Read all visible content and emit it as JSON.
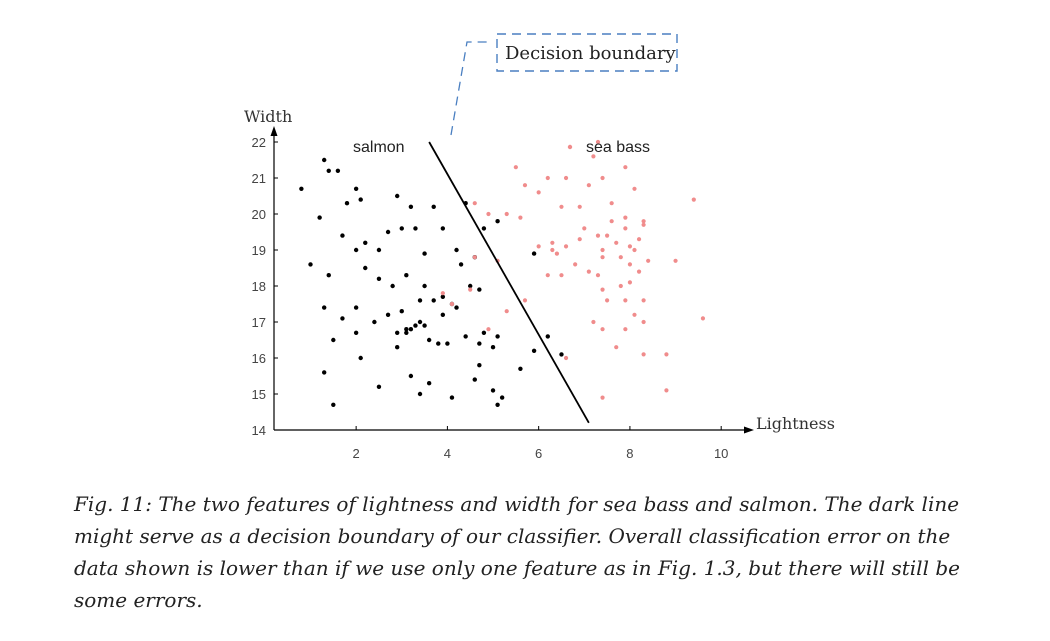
{
  "chart_data": {
    "type": "scatter",
    "xlabel": "Lightness",
    "ylabel": "Width",
    "xlim": [
      0.2,
      10.5
    ],
    "ylim": [
      14,
      22
    ],
    "x_ticks": [
      "2",
      "4",
      "6",
      "8",
      "10"
    ],
    "y_ticks": [
      "14",
      "15",
      "16",
      "17",
      "18",
      "19",
      "20",
      "21",
      "22"
    ],
    "x_tick_values": [
      2,
      4,
      6,
      8,
      10
    ],
    "y_tick_values": [
      14,
      15,
      16,
      17,
      18,
      19,
      20,
      21,
      22
    ],
    "colors": {
      "salmon": "#000000",
      "sea_bass": "#f08c8c",
      "boundary": "#000000",
      "callout": "#4a7fc1"
    },
    "labels": {
      "salmon": "salmon",
      "sea_bass": "sea bass"
    },
    "boundary": {
      "x": [
        3.6,
        7.1
      ],
      "y": [
        22.0,
        14.2
      ]
    },
    "callout": "Decision boundary",
    "series": [
      {
        "key": "salmon",
        "points": [
          [
            0.8,
            20.7
          ],
          [
            1.2,
            19.9
          ],
          [
            1.3,
            21.5
          ],
          [
            1.4,
            21.2
          ],
          [
            1.6,
            21.2
          ],
          [
            1.8,
            20.3
          ],
          [
            2.0,
            20.7
          ],
          [
            2.1,
            20.4
          ],
          [
            1.0,
            18.6
          ],
          [
            1.4,
            18.3
          ],
          [
            1.7,
            19.4
          ],
          [
            2.0,
            19.0
          ],
          [
            2.2,
            19.2
          ],
          [
            2.5,
            19.0
          ],
          [
            2.7,
            19.5
          ],
          [
            2.9,
            20.5
          ],
          [
            3.0,
            19.6
          ],
          [
            3.2,
            20.2
          ],
          [
            3.3,
            19.6
          ],
          [
            3.5,
            18.9
          ],
          [
            3.7,
            20.2
          ],
          [
            3.9,
            19.6
          ],
          [
            4.2,
            19.0
          ],
          [
            4.3,
            18.6
          ],
          [
            4.4,
            20.3
          ],
          [
            4.6,
            18.8
          ],
          [
            2.2,
            18.5
          ],
          [
            2.5,
            18.2
          ],
          [
            2.8,
            18.0
          ],
          [
            3.1,
            18.3
          ],
          [
            3.4,
            17.6
          ],
          [
            3.5,
            18.0
          ],
          [
            3.7,
            17.6
          ],
          [
            3.9,
            17.2
          ],
          [
            4.1,
            17.5
          ],
          [
            4.2,
            17.4
          ],
          [
            4.5,
            18.0
          ],
          [
            4.7,
            17.9
          ],
          [
            1.3,
            17.4
          ],
          [
            1.7,
            17.1
          ],
          [
            2.0,
            17.4
          ],
          [
            2.0,
            16.7
          ],
          [
            2.4,
            17.0
          ],
          [
            2.7,
            17.2
          ],
          [
            2.9,
            16.7
          ],
          [
            3.0,
            17.3
          ],
          [
            3.1,
            16.8
          ],
          [
            3.3,
            16.9
          ],
          [
            3.4,
            17.0
          ],
          [
            3.5,
            16.9
          ],
          [
            3.6,
            16.5
          ],
          [
            3.8,
            16.4
          ],
          [
            4.0,
            16.4
          ],
          [
            3.2,
            16.8
          ],
          [
            3.1,
            16.7
          ],
          [
            2.9,
            16.3
          ],
          [
            1.5,
            16.5
          ],
          [
            2.1,
            16.0
          ],
          [
            1.3,
            15.6
          ],
          [
            1.5,
            14.7
          ],
          [
            2.5,
            15.2
          ],
          [
            3.2,
            15.5
          ],
          [
            3.4,
            15.0
          ],
          [
            3.6,
            15.3
          ],
          [
            4.1,
            14.9
          ],
          [
            4.6,
            15.4
          ],
          [
            4.7,
            15.8
          ],
          [
            5.0,
            15.1
          ],
          [
            5.1,
            14.7
          ],
          [
            5.2,
            14.9
          ],
          [
            4.8,
            16.7
          ],
          [
            4.7,
            16.4
          ],
          [
            5.0,
            16.3
          ],
          [
            5.1,
            16.6
          ],
          [
            4.4,
            16.6
          ],
          [
            5.6,
            15.7
          ],
          [
            5.9,
            16.2
          ],
          [
            6.2,
            16.6
          ],
          [
            6.5,
            16.1
          ],
          [
            5.9,
            18.9
          ],
          [
            4.8,
            19.6
          ],
          [
            5.1,
            19.8
          ],
          [
            3.9,
            17.7
          ]
        ]
      },
      {
        "key": "sea_bass",
        "points": [
          [
            4.9,
            20.0
          ],
          [
            5.3,
            20.0
          ],
          [
            5.5,
            21.3
          ],
          [
            5.7,
            20.8
          ],
          [
            6.0,
            20.6
          ],
          [
            6.2,
            21.0
          ],
          [
            6.5,
            20.2
          ],
          [
            6.6,
            21.0
          ],
          [
            6.9,
            20.2
          ],
          [
            7.1,
            20.8
          ],
          [
            7.3,
            22.0
          ],
          [
            7.4,
            21.0
          ],
          [
            7.9,
            21.3
          ],
          [
            7.6,
            20.3
          ],
          [
            8.1,
            20.7
          ],
          [
            7.9,
            19.9
          ],
          [
            8.3,
            19.7
          ],
          [
            8.3,
            19.8
          ],
          [
            6.0,
            19.1
          ],
          [
            6.3,
            19.2
          ],
          [
            6.6,
            19.1
          ],
          [
            6.9,
            19.3
          ],
          [
            7.0,
            19.6
          ],
          [
            7.3,
            19.4
          ],
          [
            7.4,
            19.0
          ],
          [
            7.5,
            19.4
          ],
          [
            7.6,
            19.8
          ],
          [
            7.7,
            19.2
          ],
          [
            7.9,
            19.6
          ],
          [
            8.0,
            19.1
          ],
          [
            8.1,
            19.0
          ],
          [
            8.2,
            19.3
          ],
          [
            6.2,
            18.3
          ],
          [
            6.8,
            18.6
          ],
          [
            7.1,
            18.4
          ],
          [
            7.3,
            18.3
          ],
          [
            7.4,
            18.8
          ],
          [
            7.8,
            18.8
          ],
          [
            8.0,
            18.6
          ],
          [
            8.2,
            18.4
          ],
          [
            8.4,
            18.7
          ],
          [
            9.0,
            18.7
          ],
          [
            6.5,
            18.3
          ],
          [
            7.5,
            17.6
          ],
          [
            7.9,
            17.6
          ],
          [
            8.3,
            17.6
          ],
          [
            7.4,
            17.9
          ],
          [
            7.8,
            18.0
          ],
          [
            8.0,
            18.1
          ],
          [
            8.1,
            17.2
          ],
          [
            7.2,
            17.0
          ],
          [
            7.4,
            16.8
          ],
          [
            7.9,
            16.8
          ],
          [
            8.3,
            17.0
          ],
          [
            9.6,
            17.1
          ],
          [
            9.4,
            20.4
          ],
          [
            7.7,
            16.3
          ],
          [
            8.3,
            16.1
          ],
          [
            8.8,
            16.1
          ],
          [
            8.8,
            15.1
          ],
          [
            7.4,
            14.9
          ],
          [
            6.6,
            16.0
          ],
          [
            5.7,
            17.6
          ],
          [
            4.9,
            16.8
          ],
          [
            5.3,
            17.3
          ],
          [
            3.9,
            17.8
          ],
          [
            4.1,
            17.5
          ],
          [
            4.6,
            20.3
          ],
          [
            4.6,
            18.8
          ],
          [
            4.5,
            17.9
          ],
          [
            6.3,
            19.0
          ],
          [
            7.2,
            21.6
          ],
          [
            6.4,
            18.9
          ],
          [
            5.1,
            18.7
          ],
          [
            5.6,
            19.9
          ]
        ]
      }
    ]
  },
  "caption": "Fig. 11: The two features of lightness and width for sea bass and salmon. The dark line might serve as a decision boundary of our classifier. Overall classification error on the data shown is lower than if we use only one feature as in Fig. 1.3, but there will still be some errors."
}
